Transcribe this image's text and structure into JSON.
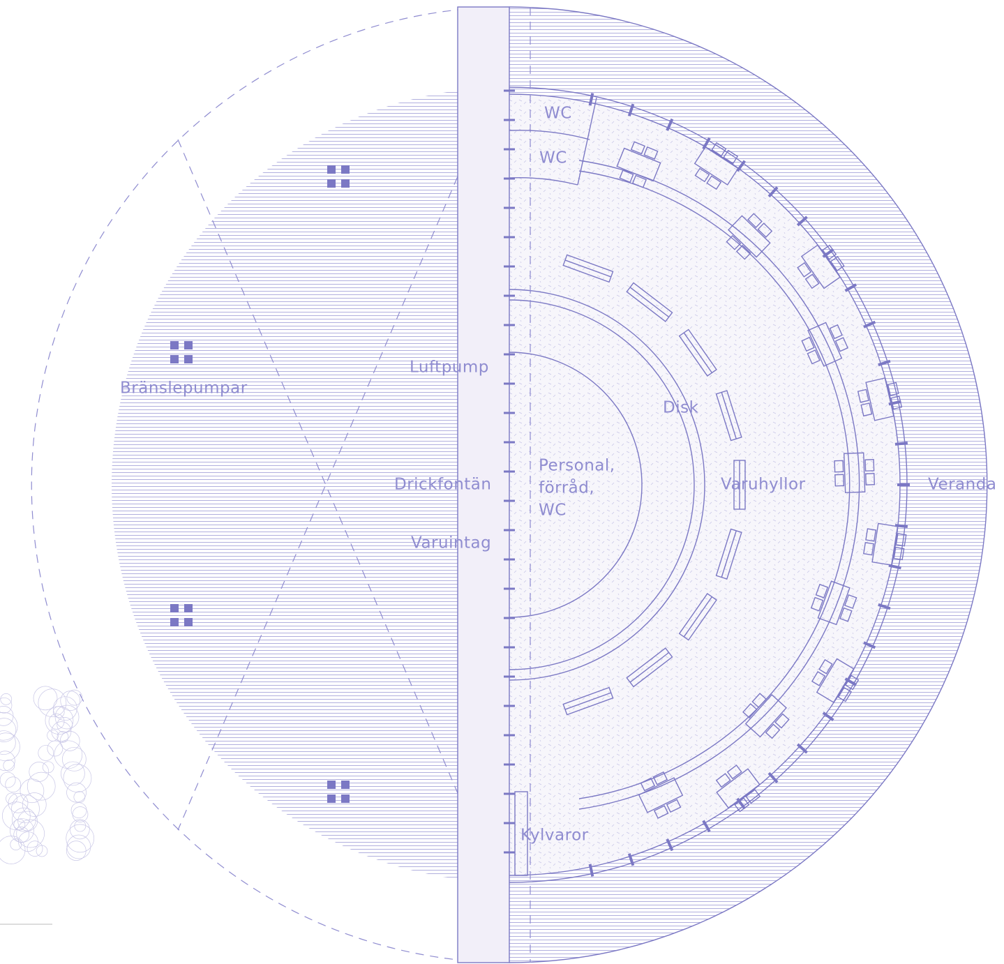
{
  "labels": {
    "wc_1": "WC",
    "wc_2": "WC",
    "luftpump": "Luftpump",
    "bransle": "Bränslepumpar",
    "disk": "Disk",
    "personal": [
      "Personal,",
      "förråd,",
      "WC"
    ],
    "drickfontan": "Drickfontän",
    "varuintag": "Varuintag",
    "varuhyllor": "Varuhyllor",
    "veranda": "Veranda",
    "kylvaror": "Kylvaror"
  }
}
